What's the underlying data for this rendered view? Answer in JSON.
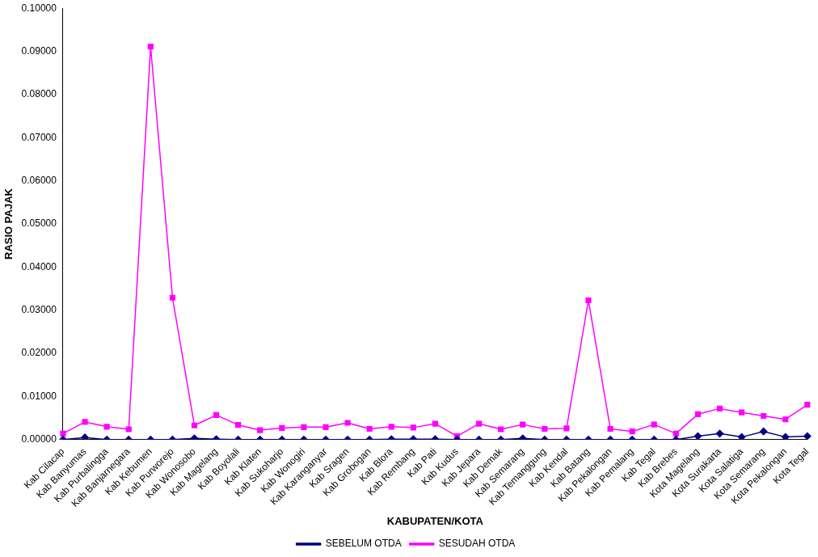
{
  "chart_data": {
    "type": "line",
    "xlabel": "KABUPATEN/KOTA",
    "ylabel": "RASIO PAJAK",
    "categories": [
      "Kab Cilacap",
      "Kab Banyumas",
      "Kab Purbalingga",
      "Kab Banjarnegara",
      "Kab Kebumen",
      "Kab Purworejo",
      "Kab Wonosobo",
      "Kab Magelang",
      "Kab Boyolali",
      "Kab Klaten",
      "Kab Sukoharjo",
      "Kab Wonogiri",
      "Kab Karanganyar",
      "Kab Sragen",
      "Kab Grobogan",
      "Kab Blora",
      "Kab Rembang",
      "Kab Pati",
      "Kab Kudus",
      "Kab Jepara",
      "Kab Demak",
      "Kab Semarang",
      "Kab Temanggung",
      "Kab Kendal",
      "Kab Batang",
      "Kab Pekalongan",
      "Kab Pemalang",
      "Kab Tegal",
      "Kab Brebes",
      "Kota Magelang",
      "Kota Surakarta",
      "Kota Salatiga",
      "Kota Semarang",
      "Kota Pekalongan",
      "Kota Tegal"
    ],
    "series": [
      {
        "name": "SEBELUM OTDA",
        "color": "#000080",
        "marker": "diamond",
        "values": [
          0.0,
          0.0005,
          0.0,
          0.0,
          0.0,
          0.0,
          0.0003,
          0.0001,
          0.0,
          0.0,
          0.0,
          0.0,
          0.0,
          0.0,
          0.0,
          0.0001,
          0.0001,
          0.0001,
          0.0,
          0.0,
          0.0,
          0.0003,
          0.0,
          0.0,
          0.0,
          0.0,
          0.0,
          0.0,
          0.0,
          0.0008,
          0.0014,
          0.0006,
          0.0019,
          0.0006,
          0.0008
        ]
      },
      {
        "name": "SESUDAH OTDA",
        "color": "#ff00ff",
        "marker": "square",
        "values": [
          0.0014,
          0.0041,
          0.003,
          0.0024,
          0.0911,
          0.0329,
          0.0033,
          0.0057,
          0.0034,
          0.0022,
          0.0027,
          0.0029,
          0.0029,
          0.0039,
          0.0025,
          0.003,
          0.0028,
          0.0037,
          0.0008,
          0.0037,
          0.0024,
          0.0035,
          0.0025,
          0.0026,
          0.0323,
          0.0025,
          0.0019,
          0.0035,
          0.0014,
          0.0059,
          0.0072,
          0.0063,
          0.0055,
          0.0047,
          0.0081
        ]
      }
    ],
    "ylim": [
      0,
      0.1
    ],
    "yticks": [
      {
        "value": 0,
        "label": "0.00000"
      },
      {
        "value": 0.01,
        "label": "0.01000"
      },
      {
        "value": 0.02,
        "label": "0.02000"
      },
      {
        "value": 0.03,
        "label": "0.03000"
      },
      {
        "value": 0.04,
        "label": "0.04000"
      },
      {
        "value": 0.05,
        "label": "0.05000"
      },
      {
        "value": 0.06,
        "label": "0.06000"
      },
      {
        "value": 0.07,
        "label": "0.07000"
      },
      {
        "value": 0.08,
        "label": "0.08000"
      },
      {
        "value": 0.09,
        "label": "0.09000"
      },
      {
        "value": 0.1,
        "label": "0.10000"
      }
    ],
    "grid": false,
    "legend": "bottom",
    "line_style": "solid"
  }
}
